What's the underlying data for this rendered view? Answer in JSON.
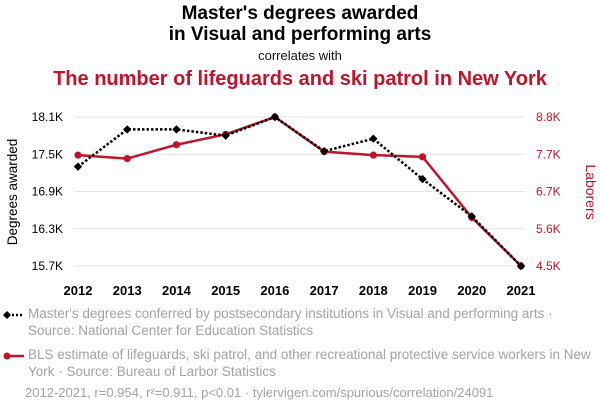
{
  "title_line1": "Master's degrees awarded",
  "title_line2": "in Visual and performing arts",
  "correlates": "correlates with",
  "title2": "The number of lifeguards and ski patrol in New York",
  "legend": {
    "series1": "Master's degrees conferred by postsecondary institutions in Visual and performing arts · Source: National Center for Education Statistics",
    "series2": "BLS estimate of lifeguards, ski patrol, and other recreational protective service workers in New York · Source: Bureau of Larbor Statistics"
  },
  "footer": "2012-2021, r=0.954, r²=0.911, p<0.01 · tylervigen.com/spurious/correlation/24091",
  "colors": {
    "series1": "#000000",
    "series2": "#c0142c",
    "grid": "#e6e6e6"
  },
  "chart_data": {
    "type": "line",
    "x": [
      2012,
      2013,
      2014,
      2015,
      2016,
      2017,
      2018,
      2019,
      2020,
      2021
    ],
    "ylabel_left": "Degrees awarded",
    "ylabel_right": "Laborers",
    "yticks_left": [
      "15.7K",
      "16.3K",
      "16.9K",
      "17.5K",
      "18.1K"
    ],
    "yticks_right": [
      "4.5K",
      "5.6K",
      "6.7K",
      "7.7K",
      "8.8K"
    ],
    "ylim_left": [
      15700,
      18100
    ],
    "ylim_right": [
      4500,
      8800
    ],
    "grid": true,
    "series": [
      {
        "axis": "left",
        "style": "dotted",
        "marker": "diamond",
        "values": [
          17300,
          17900,
          17900,
          17800,
          18100,
          17550,
          17750,
          17100,
          16500,
          15700
        ]
      },
      {
        "axis": "right",
        "style": "solid",
        "marker": "circle",
        "values": [
          7700,
          7600,
          8000,
          8300,
          8800,
          7800,
          7700,
          7650,
          5900,
          4500
        ]
      }
    ]
  }
}
